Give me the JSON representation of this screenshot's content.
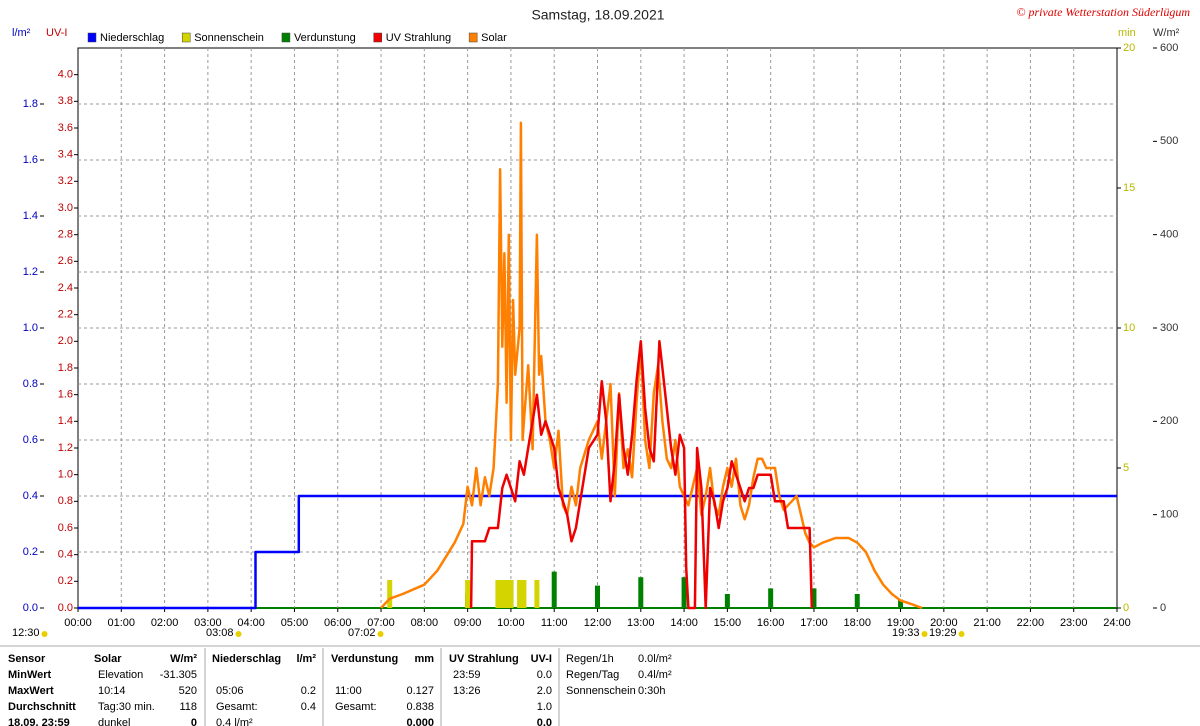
{
  "chart_data": {
    "type": "line",
    "title": "Samstag, 18.09.2021",
    "copyright": "© private Wetterstation Süderlügum",
    "y_label": "l/m²",
    "y2_label": "UV-I",
    "y3_label": "min",
    "y4_label": "W/m²",
    "xlim": [
      0,
      24
    ],
    "xticks": [
      {
        "value": 0,
        "label": "00:00"
      },
      {
        "value": 1,
        "label": "01:00"
      },
      {
        "value": 2,
        "label": "02:00"
      },
      {
        "value": 3,
        "label": "03:00"
      },
      {
        "value": 4,
        "label": "04:00"
      },
      {
        "value": 5,
        "label": "05:00"
      },
      {
        "value": 6,
        "label": "06:00"
      },
      {
        "value": 7,
        "label": "07:00"
      },
      {
        "value": 8,
        "label": "08:00"
      },
      {
        "value": 9,
        "label": "09:00"
      },
      {
        "value": 10,
        "label": "10:00"
      },
      {
        "value": 11,
        "label": "11:00"
      },
      {
        "value": 12,
        "label": "12:00"
      },
      {
        "value": 13,
        "label": "13:00"
      },
      {
        "value": 14,
        "label": "14:00"
      },
      {
        "value": 15,
        "label": "15:00"
      },
      {
        "value": 16,
        "label": "16:00"
      },
      {
        "value": 17,
        "label": "17:00"
      },
      {
        "value": 18,
        "label": "18:00"
      },
      {
        "value": 19,
        "label": "19:00"
      },
      {
        "value": 20,
        "label": "20:00"
      },
      {
        "value": 21,
        "label": "21:00"
      },
      {
        "value": 22,
        "label": "22:00"
      },
      {
        "value": 23,
        "label": "23:00"
      },
      {
        "value": 24,
        "label": "24:00"
      }
    ],
    "ylim": [
      0,
      2.0
    ],
    "yticks": [
      {
        "value": 0,
        "label": "0.0"
      },
      0.2,
      0.4,
      0.6,
      0.8,
      {
        "value": 1,
        "label": "1.0"
      },
      1.2,
      1.4,
      1.6,
      1.8
    ],
    "y2lim": [
      0,
      4.2
    ],
    "y2ticks": [
      {
        "value": 0,
        "label": "0.0"
      },
      0.2,
      0.4,
      0.6,
      0.8,
      {
        "value": 1,
        "label": "1.0"
      },
      1.2,
      1.4,
      1.6,
      1.8,
      {
        "value": 2,
        "label": "2.0"
      },
      2.2,
      2.4,
      2.6,
      2.8,
      {
        "value": 3,
        "label": "3.0"
      },
      3.2,
      3.4,
      3.6,
      3.8,
      {
        "value": 4,
        "label": "4.0"
      }
    ],
    "y3lim": [
      0,
      20
    ],
    "y3ticks": [
      0,
      5,
      10,
      15,
      20
    ],
    "y4lim": [
      0,
      600
    ],
    "y4ticks": [
      0,
      100,
      200,
      300,
      400,
      500,
      600
    ],
    "grid": true,
    "legend": "top-left",
    "series": [
      {
        "name": "Niederschlag",
        "color": "#0000ff",
        "kind": "line",
        "axis": "y",
        "x": [
          0,
          4.1,
          4.1,
          5.1,
          5.1,
          24
        ],
        "values": [
          0,
          0,
          0.2,
          0.2,
          0.4,
          0.4
        ]
      },
      {
        "name": "Sonnenschein",
        "color": "#d4d400",
        "kind": "bar",
        "axis": "y3",
        "x": [
          7.2,
          9.0,
          9.7,
          9.8,
          9.9,
          10.0,
          10.2,
          10.3,
          10.6
        ],
        "values": [
          1,
          1,
          1,
          1,
          1,
          1,
          1,
          1,
          1
        ]
      },
      {
        "name": "Verdunstung",
        "color": "#008000",
        "kind": "bar",
        "axis": "y",
        "x": [
          9,
          10,
          11,
          12,
          13,
          14,
          15,
          16,
          17,
          18,
          19
        ],
        "values": [
          0.05,
          0.1,
          0.13,
          0.08,
          0.11,
          0.11,
          0.05,
          0.07,
          0.07,
          0.05,
          0.03
        ]
      },
      {
        "name": "UV Strahlung",
        "color": "#ee0000",
        "kind": "line",
        "axis": "y2",
        "x": [
          9.08,
          9.1,
          9.4,
          9.5,
          9.7,
          9.8,
          9.9,
          10.0,
          10.1,
          10.2,
          10.3,
          10.4,
          10.5,
          10.6,
          10.7,
          10.8,
          10.9,
          11.0,
          11.1,
          11.2,
          11.3,
          11.4,
          11.5,
          11.6,
          11.8,
          12.0,
          12.1,
          12.2,
          12.3,
          12.4,
          12.5,
          12.6,
          12.7,
          12.8,
          12.9,
          13.0,
          13.1,
          13.2,
          13.3,
          13.43,
          13.5,
          13.6,
          13.7,
          13.8,
          13.9,
          14.0,
          14.05,
          14.1,
          14.25,
          14.3,
          14.4,
          14.5,
          14.6,
          14.7,
          14.8,
          14.9,
          15.0,
          15.1,
          15.2,
          15.3,
          15.4,
          15.5,
          15.6,
          15.7,
          15.8,
          16.0,
          16.1,
          16.3,
          16.4,
          16.9,
          16.95
        ],
        "values": [
          0,
          0.5,
          0.5,
          0.6,
          0.6,
          0.9,
          1.0,
          0.9,
          0.8,
          1.1,
          1.0,
          1.2,
          1.4,
          1.6,
          1.3,
          1.4,
          1.3,
          1.2,
          0.9,
          0.8,
          0.7,
          0.5,
          0.6,
          0.8,
          1.2,
          1.3,
          1.7,
          1.4,
          0.8,
          1.1,
          1.6,
          1.2,
          1.0,
          1.3,
          1.7,
          2.0,
          1.5,
          1.2,
          1.1,
          2.0,
          1.8,
          1.5,
          1.2,
          1.0,
          1.3,
          1.2,
          0.3,
          0,
          0,
          1.2,
          0.9,
          0,
          0.9,
          0.8,
          0.6,
          0.8,
          0.9,
          1.1,
          1.0,
          0.9,
          0.8,
          0.9,
          0.9,
          1.0,
          1.0,
          1.0,
          0.8,
          0.8,
          0.6,
          0.6,
          0
        ]
      },
      {
        "name": "Solar",
        "color": "#ff8000",
        "kind": "line",
        "axis": "y4",
        "x": [
          7.0,
          7.2,
          7.5,
          8.0,
          8.3,
          8.5,
          8.7,
          8.9,
          9.0,
          9.1,
          9.2,
          9.3,
          9.4,
          9.5,
          9.6,
          9.7,
          9.75,
          9.8,
          9.85,
          9.9,
          9.95,
          10.0,
          10.05,
          10.1,
          10.2,
          10.23,
          10.27,
          10.3,
          10.4,
          10.5,
          10.6,
          10.65,
          10.7,
          10.8,
          10.9,
          11.0,
          11.1,
          11.2,
          11.3,
          11.4,
          11.5,
          11.6,
          11.8,
          12.0,
          12.1,
          12.2,
          12.3,
          12.4,
          12.5,
          12.6,
          12.7,
          12.8,
          12.9,
          13.0,
          13.1,
          13.2,
          13.3,
          13.4,
          13.5,
          13.6,
          13.7,
          13.8,
          13.9,
          14.0,
          14.1,
          14.2,
          14.3,
          14.4,
          14.5,
          14.6,
          14.7,
          14.8,
          14.9,
          15.0,
          15.1,
          15.2,
          15.3,
          15.4,
          15.5,
          15.6,
          15.7,
          15.8,
          15.9,
          16.0,
          16.1,
          16.2,
          16.3,
          16.4,
          16.5,
          16.6,
          16.7,
          16.8,
          16.9,
          17.0,
          17.2,
          17.5,
          17.8,
          18.0,
          18.2,
          18.4,
          18.6,
          18.8,
          19.0,
          19.2,
          19.5
        ],
        "values": [
          0,
          10,
          15,
          25,
          40,
          55,
          70,
          90,
          130,
          110,
          150,
          110,
          140,
          120,
          150,
          240,
          470,
          280,
          380,
          220,
          400,
          180,
          330,
          250,
          300,
          520,
          180,
          200,
          260,
          170,
          400,
          250,
          270,
          200,
          180,
          150,
          190,
          110,
          100,
          130,
          110,
          150,
          180,
          200,
          160,
          200,
          240,
          120,
          230,
          150,
          170,
          140,
          220,
          280,
          180,
          150,
          230,
          260,
          200,
          160,
          150,
          180,
          130,
          120,
          110,
          130,
          150,
          100,
          120,
          150,
          110,
          100,
          130,
          150,
          130,
          160,
          110,
          95,
          110,
          140,
          160,
          160,
          150,
          150,
          150,
          120,
          105,
          110,
          115,
          120,
          100,
          80,
          70,
          65,
          70,
          75,
          75,
          70,
          60,
          40,
          25,
          15,
          8,
          5,
          0
        ]
      }
    ],
    "annotations": [
      "12:30",
      "03:08",
      "07:02",
      "19:33",
      "19:29"
    ]
  },
  "table": {
    "row_labels": [
      "Sensor",
      "MinWert",
      "MaxWert",
      "Durchschnitt",
      "18.09. 23:59"
    ],
    "sections": [
      {
        "header": "Solar",
        "unit": "W/m²",
        "rows": [
          [
            "Elevation",
            "-31.305"
          ],
          [
            "10:14",
            "520"
          ],
          [
            "Tag:30 min.",
            "118"
          ],
          [
            "dunkel",
            "0"
          ]
        ]
      },
      {
        "header": "Niederschlag",
        "unit": "l/m²",
        "rows": [
          null,
          [
            "05:06",
            "0.2"
          ],
          [
            "Gesamt:",
            "0.4"
          ],
          [
            "0.4 l/m²",
            null
          ]
        ]
      },
      {
        "header": "Verdunstung",
        "unit": "mm",
        "rows": [
          null,
          [
            "11:00",
            "0.127"
          ],
          [
            "Gesamt:",
            "0.838"
          ],
          [
            null,
            "0.000"
          ]
        ]
      },
      {
        "header": "UV Strahlung",
        "unit": "UV-I",
        "rows": [
          [
            "23:59",
            "0.0"
          ],
          [
            "13:26",
            "2.0"
          ],
          [
            null,
            "1.0"
          ],
          [
            null,
            "0.0"
          ]
        ]
      }
    ],
    "info": [
      [
        "Regen/1h",
        "0.0l/m²"
      ],
      [
        "Regen/Tag",
        "0.4l/m²"
      ],
      [
        "Sonnenschein",
        "0:30h"
      ]
    ]
  }
}
